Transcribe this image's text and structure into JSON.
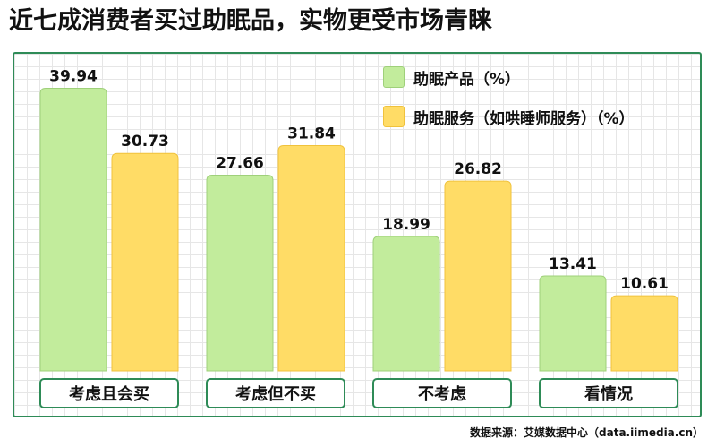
{
  "title": "近七成消费者买过助眠品，实物更受市场青睐",
  "source": "数据来源：艾媒数据中心（data.iimedia.cn）",
  "colors": {
    "series1": "#c2ec9c",
    "series1_border": "#9fd07a",
    "series2": "#ffdc66",
    "series2_border": "#f0c23c",
    "frame": "#2e8b57"
  },
  "chart_data": {
    "type": "bar",
    "categories": [
      "考虑且会买",
      "考虑但不买",
      "不考虑",
      "看情况"
    ],
    "series": [
      {
        "name": "助眠产品（%）",
        "values": [
          39.94,
          27.66,
          18.99,
          13.41
        ]
      },
      {
        "name": "助眠服务（如哄睡师服务）（%）",
        "values": [
          30.73,
          31.84,
          26.82,
          10.61
        ]
      }
    ],
    "legend_position": "top-right",
    "grid": true
  }
}
